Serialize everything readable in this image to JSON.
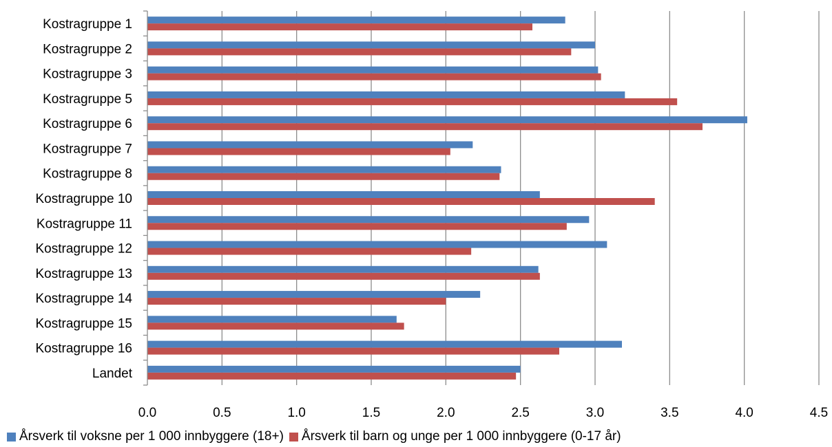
{
  "chart_data": {
    "type": "bar",
    "orientation": "horizontal",
    "categories": [
      "Kostragruppe 1",
      "Kostragruppe 2",
      "Kostragruppe 3",
      "Kostragruppe 5",
      "Kostragruppe 6",
      "Kostragruppe 7",
      "Kostragruppe 8",
      "Kostragruppe 10",
      "Kostragruppe 11",
      "Kostragruppe 12",
      "Kostragruppe 13",
      "Kostragruppe 14",
      "Kostragruppe 15",
      "Kostragruppe 16",
      "Landet"
    ],
    "series": [
      {
        "name": "Årsverk til voksne per 1 000 innbyggere (18+)",
        "color": "#4F81BD",
        "values": [
          2.8,
          3.0,
          3.02,
          3.2,
          4.02,
          2.18,
          2.37,
          2.63,
          2.96,
          3.08,
          2.62,
          2.23,
          1.67,
          3.18,
          2.5
        ]
      },
      {
        "name": "Årsverk til barn og unge per 1 000 innbyggere (0-17 år)",
        "color": "#C0504D",
        "values": [
          2.58,
          2.84,
          3.04,
          3.55,
          3.72,
          2.03,
          2.36,
          3.4,
          2.81,
          2.17,
          2.63,
          2.0,
          1.72,
          2.76,
          2.47
        ]
      }
    ],
    "x_ticks": [
      "0.0",
      "0.5",
      "1.0",
      "1.5",
      "2.0",
      "2.5",
      "3.0",
      "3.5",
      "4.0",
      "4.5"
    ],
    "xlim": [
      0,
      4.5
    ],
    "grid": "vertical",
    "legend_position": "bottom"
  }
}
